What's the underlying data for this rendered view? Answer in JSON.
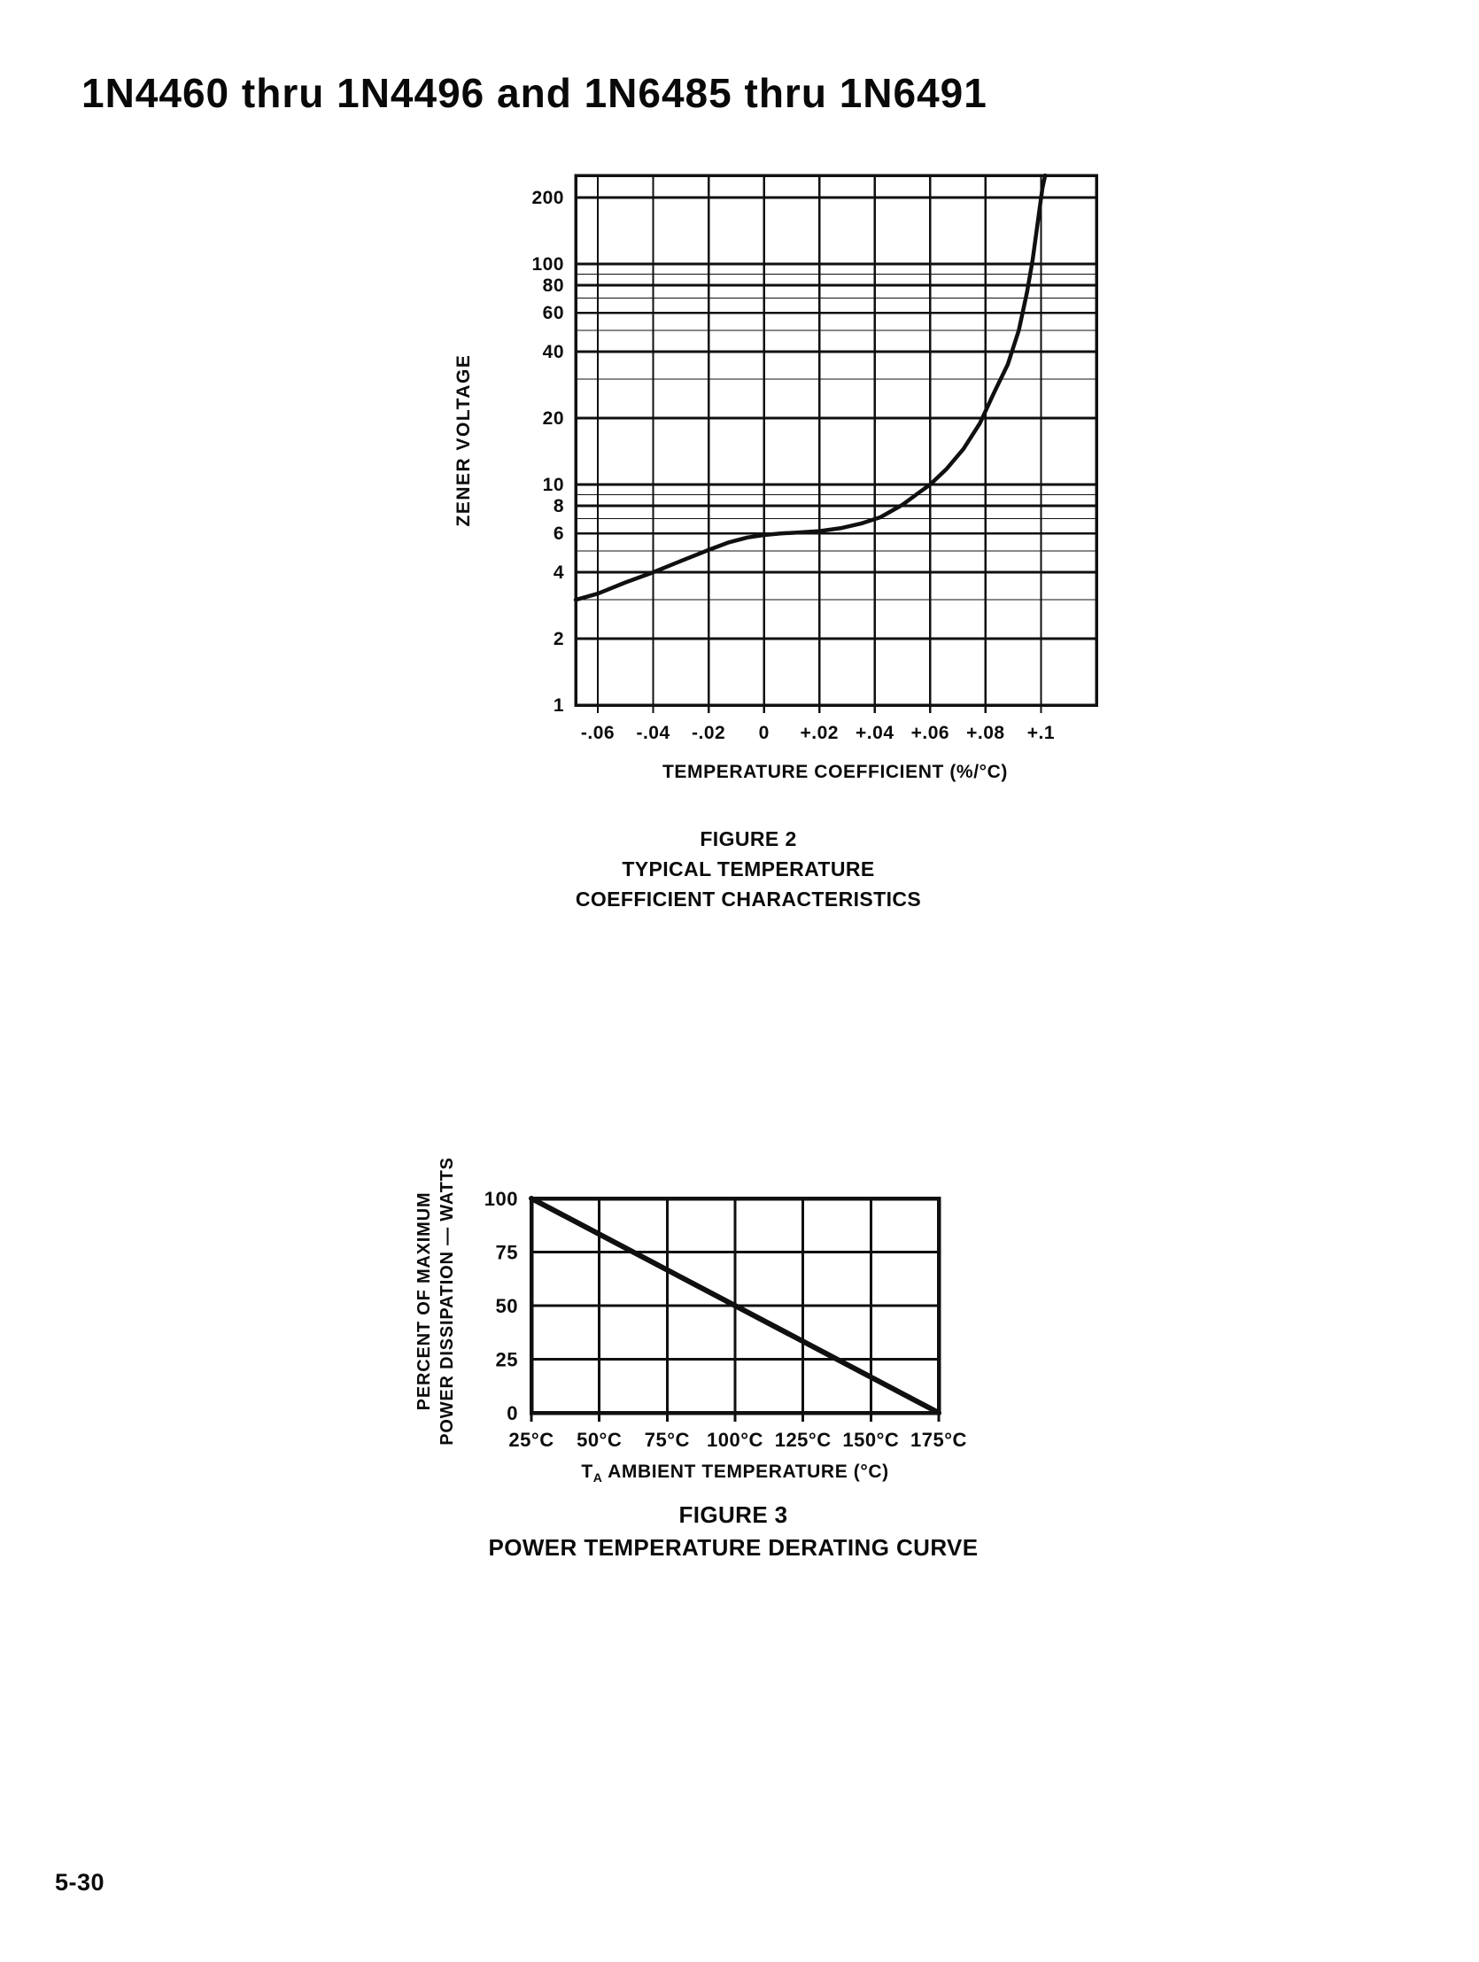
{
  "page": {
    "title": "1N4460 thru 1N4496 and 1N6485 thru 1N6491",
    "page_number": "5-30"
  },
  "figure2": {
    "y_axis_title": "ZENER VOLTAGE",
    "x_axis_title": "TEMPERATURE COEFFICIENT (%/°C)",
    "caption": [
      "FIGURE 2",
      "TYPICAL TEMPERATURE",
      "COEFFICIENT CHARACTERISTICS"
    ]
  },
  "figure3": {
    "y_axis_title_line1": "PERCENT OF MAXIMUM",
    "y_axis_title_line2": "POWER DISSIPATION — WATTS",
    "x_axis_title_t": "T",
    "x_axis_title_sub": "A",
    "x_axis_title_rest": " AMBIENT TEMPERATURE (°C)",
    "caption": [
      "FIGURE 3",
      "POWER TEMPERATURE DERATING CURVE"
    ]
  },
  "chart_data": [
    {
      "type": "line",
      "title": "FIGURE 2 TYPICAL TEMPERATURE COEFFICIENT CHARACTERISTICS",
      "xlabel": "TEMPERATURE COEFFICIENT (%/°C)",
      "ylabel": "ZENER VOLTAGE",
      "x_scale": "linear",
      "y_scale": "log",
      "xlim": [
        -0.068,
        0.12
      ],
      "ylim": [
        1,
        252
      ],
      "grid": true,
      "x_ticks": [
        -0.06,
        -0.04,
        -0.02,
        0,
        0.02,
        0.04,
        0.06,
        0.08,
        0.1
      ],
      "x_tick_labels": [
        "-.06",
        "-.04",
        "-.02",
        "0",
        "+.02",
        "+.04",
        "+.06",
        "+.08",
        "+.1"
      ],
      "y_ticks": [
        200,
        100,
        80,
        60,
        40,
        20,
        10,
        8,
        6,
        4,
        2,
        1
      ],
      "y_tick_labels": [
        "200",
        "100",
        "80",
        "60",
        "40",
        "20",
        "10",
        "8",
        "6",
        "4",
        "2",
        "1"
      ],
      "y_minor_gridlines": [
        3,
        5,
        7,
        9,
        30,
        50,
        70,
        90
      ],
      "series": [
        {
          "name": "typical temperature coefficient vs zener voltage",
          "points": [
            [
              -0.068,
              3.0
            ],
            [
              -0.06,
              3.2
            ],
            [
              -0.05,
              3.6
            ],
            [
              -0.04,
              4.0
            ],
            [
              -0.03,
              4.5
            ],
            [
              -0.02,
              5.05
            ],
            [
              -0.013,
              5.45
            ],
            [
              -0.006,
              5.75
            ],
            [
              0,
              5.9
            ],
            [
              0.006,
              6.0
            ],
            [
              0.012,
              6.05
            ],
            [
              0.02,
              6.15
            ],
            [
              0.028,
              6.35
            ],
            [
              0.035,
              6.65
            ],
            [
              0.042,
              7.1
            ],
            [
              0.05,
              8.1
            ],
            [
              0.056,
              9.2
            ],
            [
              0.06,
              10
            ],
            [
              0.066,
              11.8
            ],
            [
              0.072,
              14.5
            ],
            [
              0.078,
              19
            ],
            [
              0.083,
              26
            ],
            [
              0.088,
              35
            ],
            [
              0.092,
              50
            ],
            [
              0.095,
              75
            ],
            [
              0.097,
              105
            ],
            [
              0.099,
              160
            ],
            [
              0.1005,
              220
            ],
            [
              0.1015,
              252
            ]
          ]
        }
      ]
    },
    {
      "type": "line",
      "title": "FIGURE 3 POWER TEMPERATURE DERATING CURVE",
      "xlabel": "TA AMBIENT TEMPERATURE (°C)",
      "ylabel": "PERCENT OF MAXIMUM POWER DISSIPATION — WATTS",
      "x_scale": "linear",
      "y_scale": "linear",
      "xlim": [
        25,
        175
      ],
      "ylim": [
        0,
        100
      ],
      "grid": true,
      "x_ticks": [
        25,
        50,
        75,
        100,
        125,
        150,
        175
      ],
      "x_tick_labels": [
        "25°C",
        "50°C",
        "75°C",
        "100°C",
        "125°C",
        "150°C",
        "175°C"
      ],
      "x_gridlines": [
        50,
        75,
        100,
        125,
        150
      ],
      "y_ticks": [
        100,
        75,
        50,
        25,
        0
      ],
      "y_tick_labels": [
        "100",
        "75",
        "50",
        "25",
        "0"
      ],
      "y_gridlines": [
        75,
        50,
        25
      ],
      "series": [
        {
          "name": "power temperature derating line",
          "points": [
            [
              25,
              100
            ],
            [
              175,
              0
            ]
          ]
        }
      ]
    }
  ]
}
